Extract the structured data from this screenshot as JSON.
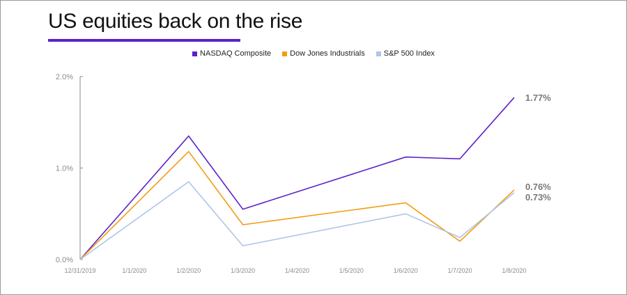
{
  "title": "US equities back on the rise",
  "colors": {
    "accent": "#5a22c9",
    "nasdaq": "#5a22c9",
    "dow": "#f39c12",
    "sp500": "#aec6e8",
    "axis": "#8a8a8a"
  },
  "chart_data": {
    "type": "line",
    "title": "US equities back on the rise",
    "xlabel": "",
    "ylabel": "",
    "x": [
      "12/31/2019",
      "1/1/2020",
      "1/2/2020",
      "1/3/2020",
      "1/4/2020",
      "1/5/2020",
      "1/6/2020",
      "1/7/2020",
      "1/8/2020"
    ],
    "y_ticks": [
      "0.0%",
      "1.0%",
      "2.0%"
    ],
    "ylim": [
      0,
      2.0
    ],
    "grid": false,
    "legend_position": "top-center",
    "series": [
      {
        "name": "NASDAQ Composite",
        "color": "#5a22c9",
        "points": [
          {
            "x": "12/31/2019",
            "y": 0.0
          },
          {
            "x": "1/2/2020",
            "y": 1.35
          },
          {
            "x": "1/3/2020",
            "y": 0.55
          },
          {
            "x": "1/6/2020",
            "y": 1.12
          },
          {
            "x": "1/7/2020",
            "y": 1.1
          },
          {
            "x": "1/8/2020",
            "y": 1.77
          }
        ],
        "end_label": "1.77%"
      },
      {
        "name": "Dow Jones Industrials",
        "color": "#f39c12",
        "points": [
          {
            "x": "12/31/2019",
            "y": 0.0
          },
          {
            "x": "1/2/2020",
            "y": 1.18
          },
          {
            "x": "1/3/2020",
            "y": 0.38
          },
          {
            "x": "1/6/2020",
            "y": 0.62
          },
          {
            "x": "1/7/2020",
            "y": 0.2
          },
          {
            "x": "1/8/2020",
            "y": 0.76
          }
        ],
        "end_label": "0.76%"
      },
      {
        "name": "S&P 500 Index",
        "color": "#aec6e8",
        "points": [
          {
            "x": "12/31/2019",
            "y": 0.0
          },
          {
            "x": "1/2/2020",
            "y": 0.85
          },
          {
            "x": "1/3/2020",
            "y": 0.15
          },
          {
            "x": "1/6/2020",
            "y": 0.5
          },
          {
            "x": "1/7/2020",
            "y": 0.24
          },
          {
            "x": "1/8/2020",
            "y": 0.73
          }
        ],
        "end_label": "0.73%"
      }
    ]
  }
}
